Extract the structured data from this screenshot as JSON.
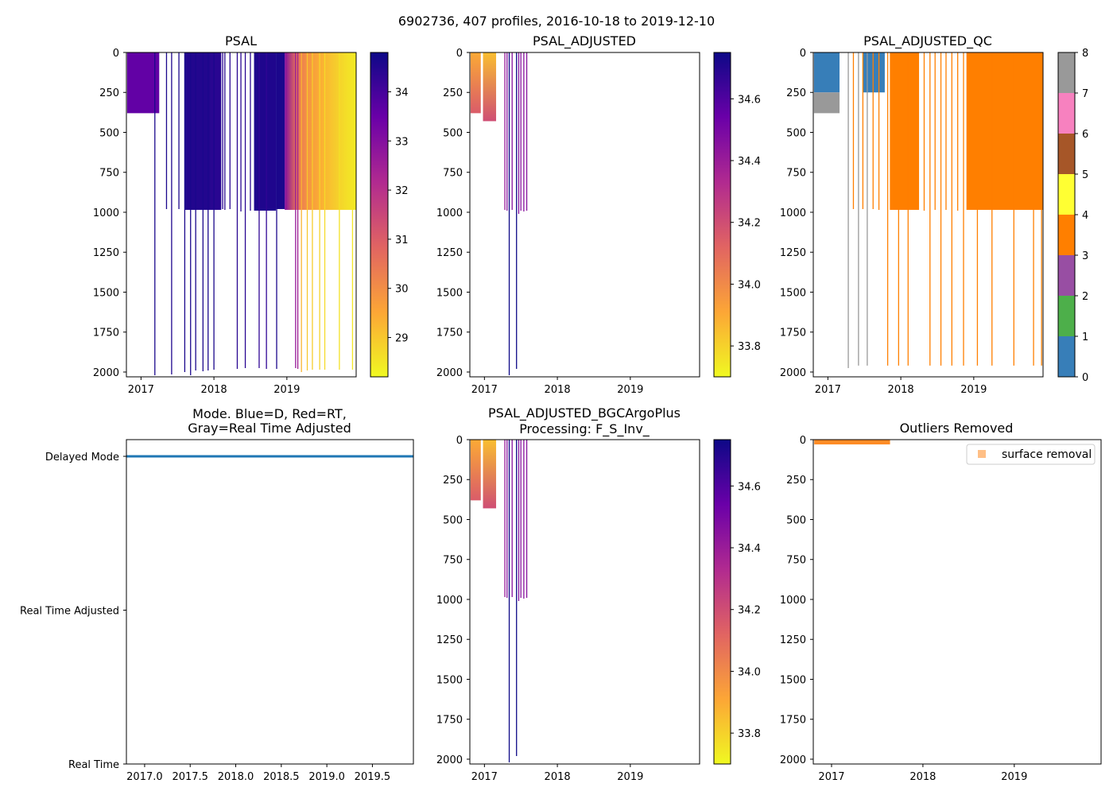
{
  "suptitle": "6902736, 407 profiles, 2016-10-18 to 2019-12-10",
  "colors": {
    "plasma": [
      "#f0f921",
      "#fca636",
      "#e16462",
      "#b12a90",
      "#6a00a8",
      "#0d0887"
    ],
    "qc": [
      "#e41a1c",
      "#377eb8",
      "#4daf4a",
      "#984ea3",
      "#ff7f00",
      "#ffff33",
      "#a65628",
      "#f781bf",
      "#999999"
    ],
    "mode_line": "#1f77b4",
    "outlier": "#ff7f0e"
  },
  "chart_data": [
    {
      "id": "psal",
      "type": "heatmap",
      "title": "PSAL",
      "x_range": [
        2016.8,
        2019.95
      ],
      "x_ticks": [
        "2017",
        "2018",
        "2019"
      ],
      "y_range": [
        0,
        2030
      ],
      "y_ticks": [
        "0",
        "250",
        "500",
        "750",
        "1000",
        "1250",
        "1500",
        "1750",
        "2000"
      ],
      "colorbar": {
        "range": [
          28.2,
          34.8
        ],
        "ticks": [
          "29",
          "30",
          "31",
          "32",
          "33",
          "34"
        ]
      },
      "blocks": [
        {
          "x0": 2016.81,
          "x1": 2017.25,
          "depth": 380,
          "value": 33.6
        },
        {
          "x0": 2017.6,
          "x1": 2017.95,
          "depth": 985,
          "value": 34.5
        },
        {
          "x0": 2017.95,
          "x1": 2018.1,
          "depth": 985,
          "value": 34.4
        },
        {
          "x0": 2018.55,
          "x1": 2018.85,
          "depth": 990,
          "value": 34.55
        },
        {
          "x0": 2018.85,
          "x1": 2018.97,
          "depth": 980,
          "value": 34.6
        }
      ],
      "gradient_block": {
        "x0": 2018.97,
        "x1": 2019.95,
        "depth": 985,
        "v0": 33.0,
        "v1": 28.4
      },
      "profiles": [
        {
          "x": 2017.19,
          "depth": 2020,
          "value": 34.6
        },
        {
          "x": 2017.35,
          "depth": 980,
          "value": 34.6
        },
        {
          "x": 2017.42,
          "depth": 2015,
          "value": 34.55
        },
        {
          "x": 2017.52,
          "depth": 980,
          "value": 34.6
        },
        {
          "x": 2017.6,
          "depth": 2000,
          "value": 34.6
        },
        {
          "x": 2017.68,
          "depth": 2020,
          "value": 34.6
        },
        {
          "x": 2017.75,
          "depth": 1990,
          "value": 34.6
        },
        {
          "x": 2017.85,
          "depth": 1995,
          "value": 34.6
        },
        {
          "x": 2017.92,
          "depth": 1990,
          "value": 34.6
        },
        {
          "x": 2018.0,
          "depth": 1985,
          "value": 34.6
        },
        {
          "x": 2018.12,
          "depth": 980,
          "value": 34.4
        },
        {
          "x": 2018.15,
          "depth": 985,
          "value": 34.4
        },
        {
          "x": 2018.22,
          "depth": 980,
          "value": 34.4
        },
        {
          "x": 2018.32,
          "depth": 1980,
          "value": 34.4
        },
        {
          "x": 2018.37,
          "depth": 995,
          "value": 34.4
        },
        {
          "x": 2018.43,
          "depth": 1975,
          "value": 34.4
        },
        {
          "x": 2018.5,
          "depth": 990,
          "value": 34.4
        },
        {
          "x": 2018.62,
          "depth": 1975,
          "value": 34.3
        },
        {
          "x": 2018.72,
          "depth": 1980,
          "value": 34.3
        },
        {
          "x": 2018.86,
          "depth": 1980,
          "value": 34.6
        },
        {
          "x": 2019.12,
          "depth": 1975,
          "value": 32.7
        },
        {
          "x": 2019.15,
          "depth": 1980,
          "value": 32.5
        },
        {
          "x": 2019.2,
          "depth": 2000,
          "value": 29.3
        },
        {
          "x": 2019.28,
          "depth": 1990,
          "value": 29.0
        },
        {
          "x": 2019.35,
          "depth": 1985,
          "value": 28.9
        },
        {
          "x": 2019.45,
          "depth": 1985,
          "value": 28.8
        },
        {
          "x": 2019.52,
          "depth": 1985,
          "value": 28.7
        },
        {
          "x": 2019.72,
          "depth": 1985,
          "value": 28.6
        },
        {
          "x": 2019.9,
          "depth": 1985,
          "value": 28.5
        }
      ]
    },
    {
      "id": "psal_adj",
      "type": "heatmap",
      "title": "PSAL_ADJUSTED",
      "x_range": [
        2016.8,
        2019.95
      ],
      "x_ticks": [
        "2017",
        "2018",
        "2019"
      ],
      "y_range": [
        0,
        2030
      ],
      "y_ticks": [
        "0",
        "250",
        "500",
        "750",
        "1000",
        "1250",
        "1500",
        "1750",
        "2000"
      ],
      "colorbar": {
        "range": [
          33.7,
          34.75
        ],
        "ticks": [
          "33.8",
          "34.0",
          "34.2",
          "34.4",
          "34.6"
        ]
      },
      "blocks": [
        {
          "x0": 2016.81,
          "x1": 2016.95,
          "depth": 380,
          "v0": 33.9,
          "v1": 34.15
        },
        {
          "x0": 2016.98,
          "x1": 2017.16,
          "depth": 430,
          "v0": 33.85,
          "v1": 34.2
        }
      ],
      "profiles": [
        {
          "x": 2017.28,
          "depth": 985,
          "value": 34.4
        },
        {
          "x": 2017.31,
          "depth": 990,
          "value": 34.45
        },
        {
          "x": 2017.34,
          "depth": 2020,
          "value": 34.75
        },
        {
          "x": 2017.38,
          "depth": 985,
          "value": 34.45
        },
        {
          "x": 2017.44,
          "depth": 1980,
          "value": 34.75
        },
        {
          "x": 2017.47,
          "depth": 1010,
          "value": 34.45
        },
        {
          "x": 2017.5,
          "depth": 990,
          "value": 34.45
        },
        {
          "x": 2017.54,
          "depth": 995,
          "value": 34.45
        },
        {
          "x": 2017.58,
          "depth": 990,
          "value": 34.45
        }
      ]
    },
    {
      "id": "psal_qc",
      "type": "heatmap",
      "title": "PSAL_ADJUSTED_QC",
      "x_range": [
        2016.8,
        2019.95
      ],
      "x_ticks": [
        "2017",
        "2018",
        "2019"
      ],
      "y_range": [
        0,
        2030
      ],
      "y_ticks": [
        "0",
        "250",
        "500",
        "750",
        "1000",
        "1250",
        "1500",
        "1750",
        "2000"
      ],
      "colorbar": {
        "ticks": [
          "0",
          "1",
          "2",
          "3",
          "4",
          "5",
          "6",
          "7",
          "8"
        ]
      },
      "blocks": [
        {
          "x0": 2016.81,
          "x1": 2017.16,
          "d0": 0,
          "d1": 250,
          "value": 1
        },
        {
          "x0": 2016.81,
          "x1": 2017.16,
          "d0": 250,
          "d1": 380,
          "value": 8
        },
        {
          "x0": 2017.48,
          "x1": 2017.78,
          "d0": 0,
          "d1": 250,
          "value": 1
        },
        {
          "x0": 2017.85,
          "x1": 2018.25,
          "d0": 0,
          "d1": 985,
          "value": 4
        },
        {
          "x0": 2018.9,
          "x1": 2019.95,
          "d0": 0,
          "d1": 985,
          "value": 4
        }
      ],
      "profiles": [
        {
          "x": 2017.28,
          "depth": 1975,
          "value": 8
        },
        {
          "x": 2017.35,
          "depth": 980,
          "value": 4
        },
        {
          "x": 2017.42,
          "depth": 1960,
          "value": 8
        },
        {
          "x": 2017.48,
          "depth": 980,
          "value": 4
        },
        {
          "x": 2017.54,
          "depth": 1960,
          "value": 8
        },
        {
          "x": 2017.62,
          "depth": 980,
          "value": 4
        },
        {
          "x": 2017.7,
          "depth": 985,
          "value": 4
        },
        {
          "x": 2017.82,
          "depth": 1960,
          "value": 4
        },
        {
          "x": 2017.97,
          "depth": 1960,
          "value": 4
        },
        {
          "x": 2018.1,
          "depth": 1960,
          "value": 4
        },
        {
          "x": 2018.32,
          "depth": 990,
          "value": 4
        },
        {
          "x": 2018.4,
          "depth": 1960,
          "value": 4
        },
        {
          "x": 2018.47,
          "depth": 985,
          "value": 4
        },
        {
          "x": 2018.55,
          "depth": 1960,
          "value": 4
        },
        {
          "x": 2018.62,
          "depth": 985,
          "value": 4
        },
        {
          "x": 2018.7,
          "depth": 1960,
          "value": 4
        },
        {
          "x": 2018.78,
          "depth": 990,
          "value": 4
        },
        {
          "x": 2018.86,
          "depth": 1960,
          "value": 4
        },
        {
          "x": 2019.05,
          "depth": 1960,
          "value": 4
        },
        {
          "x": 2019.25,
          "depth": 1960,
          "value": 4
        },
        {
          "x": 2019.55,
          "depth": 1960,
          "value": 4
        },
        {
          "x": 2019.82,
          "depth": 1960,
          "value": 4
        },
        {
          "x": 2019.93,
          "depth": 1960,
          "value": 4
        }
      ]
    },
    {
      "id": "mode",
      "type": "line",
      "title": "Mode. Blue=D, Red=RT,",
      "title2": "Gray=Real Time Adjusted",
      "x_range": [
        2016.8,
        2019.95
      ],
      "x_ticks": [
        "2017.0",
        "2017.5",
        "2018.0",
        "2018.5",
        "2019.0",
        "2019.5"
      ],
      "y_labels": [
        "Delayed Mode",
        "Real Time Adjusted",
        "Real Time"
      ],
      "series": [
        {
          "name": "Delayed Mode",
          "x": [
            2016.8,
            2019.95
          ],
          "y": [
            2,
            2
          ]
        }
      ]
    },
    {
      "id": "bgc",
      "type": "heatmap",
      "title": "PSAL_ADJUSTED_BGCArgoPlus",
      "title2": "Processing: F_S_Inv_",
      "x_range": [
        2016.8,
        2019.95
      ],
      "x_ticks": [
        "2017",
        "2018",
        "2019"
      ],
      "y_range": [
        0,
        2030
      ],
      "y_ticks": [
        "0",
        "250",
        "500",
        "750",
        "1000",
        "1250",
        "1500",
        "1750",
        "2000"
      ],
      "colorbar": {
        "range": [
          33.7,
          34.75
        ],
        "ticks": [
          "33.8",
          "34.0",
          "34.2",
          "34.4",
          "34.6"
        ]
      },
      "blocks": [
        {
          "x0": 2016.81,
          "x1": 2016.95,
          "depth": 380,
          "v0": 33.9,
          "v1": 34.15
        },
        {
          "x0": 2016.98,
          "x1": 2017.16,
          "depth": 430,
          "v0": 33.85,
          "v1": 34.2
        }
      ],
      "profiles": [
        {
          "x": 2017.28,
          "depth": 985,
          "value": 34.4
        },
        {
          "x": 2017.31,
          "depth": 990,
          "value": 34.45
        },
        {
          "x": 2017.34,
          "depth": 2020,
          "value": 34.75
        },
        {
          "x": 2017.38,
          "depth": 985,
          "value": 34.45
        },
        {
          "x": 2017.44,
          "depth": 1980,
          "value": 34.75
        },
        {
          "x": 2017.47,
          "depth": 1010,
          "value": 34.45
        },
        {
          "x": 2017.5,
          "depth": 990,
          "value": 34.45
        },
        {
          "x": 2017.54,
          "depth": 995,
          "value": 34.45
        },
        {
          "x": 2017.58,
          "depth": 990,
          "value": 34.45
        }
      ]
    },
    {
      "id": "outliers",
      "type": "scatter",
      "title": "Outliers Removed",
      "x_range": [
        2016.8,
        2019.95
      ],
      "x_ticks": [
        "2017",
        "2018",
        "2019"
      ],
      "y_range": [
        0,
        2030
      ],
      "y_ticks": [
        "0",
        "250",
        "500",
        "750",
        "1000",
        "1250",
        "1500",
        "1750",
        "2000"
      ],
      "legend": "surface removal",
      "series": [
        {
          "name": "surface removal",
          "x_start": 2016.81,
          "x_end": 2017.64,
          "depth_max": 20
        }
      ]
    }
  ]
}
